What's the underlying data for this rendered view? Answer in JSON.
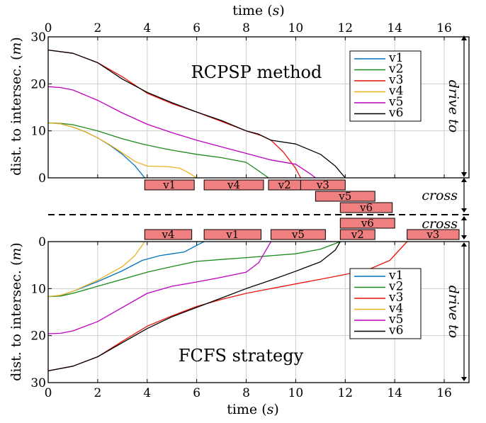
{
  "chart_data": [
    {
      "type": "line",
      "title": "RCPSP method",
      "xlabel": "time (s)",
      "ylabel": "dist. to intersec. (m)",
      "xlim": [
        0,
        17
      ],
      "ylim": [
        0,
        30
      ],
      "xticks": [
        0,
        2,
        4,
        6,
        8,
        10,
        12,
        14,
        16
      ],
      "yticks": [
        0,
        10,
        20,
        30
      ],
      "grid": true,
      "legend_position": "top-right",
      "side_labels": [
        "drive to",
        "cross"
      ],
      "series": [
        {
          "name": "v1",
          "color": "#0072BD",
          "points": [
            [
              0,
              11.7
            ],
            [
              0.5,
              11.5
            ],
            [
              1,
              10.8
            ],
            [
              1.5,
              9.8
            ],
            [
              2,
              8.5
            ],
            [
              2.5,
              6.9
            ],
            [
              3,
              5
            ],
            [
              3.5,
              2.6
            ],
            [
              3.9,
              0
            ]
          ]
        },
        {
          "name": "v2",
          "color": "#1a8a1a",
          "points": [
            [
              0,
              11.7
            ],
            [
              0.5,
              11.6
            ],
            [
              1,
              11.3
            ],
            [
              2,
              10
            ],
            [
              3,
              8.3
            ],
            [
              3.8,
              7.2
            ],
            [
              4.5,
              6.4
            ],
            [
              5,
              5.9
            ],
            [
              6,
              5
            ],
            [
              7,
              4.3
            ],
            [
              8,
              3.3
            ],
            [
              8.5,
              1.5
            ],
            [
              8.9,
              0
            ]
          ]
        },
        {
          "name": "v3",
          "color": "#e8140c",
          "points": [
            [
              0,
              27.2
            ],
            [
              1,
              26.5
            ],
            [
              2,
              24.5
            ],
            [
              3,
              21.5
            ],
            [
              4,
              18
            ],
            [
              5,
              15.8
            ],
            [
              6,
              14
            ],
            [
              7,
              12
            ],
            [
              8,
              10
            ],
            [
              8.6,
              9
            ],
            [
              9,
              8
            ],
            [
              9.5,
              5.5
            ],
            [
              10,
              2
            ],
            [
              10.2,
              0
            ]
          ]
        },
        {
          "name": "v4",
          "color": "#edb120",
          "points": [
            [
              0,
              11.7
            ],
            [
              0.5,
              11.5
            ],
            [
              1,
              10.8
            ],
            [
              1.5,
              9.8
            ],
            [
              2,
              8.5
            ],
            [
              2.5,
              7
            ],
            [
              3,
              5.3
            ],
            [
              3.5,
              3.5
            ],
            [
              4,
              2.5
            ],
            [
              4.8,
              2.4
            ],
            [
              5.3,
              2.1
            ],
            [
              5.7,
              1
            ],
            [
              6,
              0
            ]
          ]
        },
        {
          "name": "v5",
          "color": "#c000c0",
          "points": [
            [
              0,
              19.4
            ],
            [
              0.5,
              19.2
            ],
            [
              1,
              18.7
            ],
            [
              2,
              16.5
            ],
            [
              3,
              13.8
            ],
            [
              4,
              11.4
            ],
            [
              5,
              9.6
            ],
            [
              6,
              8
            ],
            [
              7,
              6.6
            ],
            [
              8,
              5.2
            ],
            [
              9,
              3.8
            ],
            [
              10,
              2.9
            ],
            [
              10.6,
              0.8
            ],
            [
              10.8,
              0
            ]
          ]
        },
        {
          "name": "v6",
          "color": "#000000",
          "points": [
            [
              0,
              27.2
            ],
            [
              1,
              26.5
            ],
            [
              2,
              24.5
            ],
            [
              3,
              21
            ],
            [
              4,
              18.2
            ],
            [
              5,
              16
            ],
            [
              6,
              14
            ],
            [
              7,
              12.2
            ],
            [
              8,
              10
            ],
            [
              8.5,
              9.3
            ],
            [
              9,
              8
            ],
            [
              10,
              7.2
            ],
            [
              11,
              5
            ],
            [
              11.6,
              2.5
            ],
            [
              12,
              0
            ]
          ]
        }
      ],
      "tasks": [
        {
          "label": "v1",
          "start": 3.9,
          "end": 5.9,
          "row": 0
        },
        {
          "label": "v4",
          "start": 6.3,
          "end": 8.7,
          "row": 0
        },
        {
          "label": "v2",
          "start": 8.9,
          "end": 10.2,
          "row": 0
        },
        {
          "label": "v3",
          "start": 10.2,
          "end": 12.0,
          "row": 0
        },
        {
          "label": "v5",
          "start": 10.8,
          "end": 13.2,
          "row": 1
        },
        {
          "label": "v6",
          "start": 11.8,
          "end": 13.9,
          "row": 2
        }
      ]
    },
    {
      "type": "line",
      "title": "FCFS strategy",
      "xlabel": "time (s)",
      "ylabel": "dist. to intersec. (m)",
      "xlim": [
        0,
        17
      ],
      "ylim": [
        0,
        30
      ],
      "y_reversed": true,
      "xticks": [
        0,
        2,
        4,
        6,
        8,
        10,
        12,
        14,
        16
      ],
      "yticks": [
        0,
        10,
        20,
        30
      ],
      "grid": true,
      "legend_position": "right",
      "side_labels": [
        "drive to",
        "cross"
      ],
      "series": [
        {
          "name": "v1",
          "color": "#0072BD",
          "points": [
            [
              0,
              11.7
            ],
            [
              0.5,
              11.5
            ],
            [
              1,
              10.6
            ],
            [
              2,
              8.5
            ],
            [
              3,
              6.2
            ],
            [
              3.8,
              4
            ],
            [
              4.5,
              3
            ],
            [
              5,
              2.6
            ],
            [
              5.5,
              2.2
            ],
            [
              6,
              0.8
            ],
            [
              6.3,
              0
            ]
          ]
        },
        {
          "name": "v2",
          "color": "#1a8a1a",
          "points": [
            [
              0,
              11.7
            ],
            [
              0.5,
              11.6
            ],
            [
              1,
              11
            ],
            [
              2,
              9.5
            ],
            [
              3,
              8
            ],
            [
              4,
              6.5
            ],
            [
              5,
              5.3
            ],
            [
              6,
              4.2
            ],
            [
              7,
              3.8
            ],
            [
              8,
              3.4
            ],
            [
              9,
              3
            ],
            [
              10,
              2.6
            ],
            [
              11,
              1.6
            ],
            [
              11.8,
              0
            ]
          ]
        },
        {
          "name": "v3",
          "color": "#e8140c",
          "points": [
            [
              0,
              27.5
            ],
            [
              1,
              26.5
            ],
            [
              2,
              24.5
            ],
            [
              3,
              21.2
            ],
            [
              4,
              18
            ],
            [
              5,
              15.8
            ],
            [
              6,
              13.8
            ],
            [
              7,
              12.3
            ],
            [
              8,
              11
            ],
            [
              9,
              10
            ],
            [
              10,
              9
            ],
            [
              11,
              8
            ],
            [
              12,
              7
            ],
            [
              13,
              5.8
            ],
            [
              13.8,
              4
            ],
            [
              14.5,
              0
            ]
          ]
        },
        {
          "name": "v4",
          "color": "#edb120",
          "points": [
            [
              0,
              11.7
            ],
            [
              0.5,
              11.4
            ],
            [
              1,
              10.6
            ],
            [
              2,
              8.2
            ],
            [
              3,
              5.3
            ],
            [
              3.5,
              3
            ],
            [
              3.9,
              0
            ]
          ]
        },
        {
          "name": "v5",
          "color": "#c000c0",
          "points": [
            [
              0,
              19.6
            ],
            [
              0.5,
              19.5
            ],
            [
              1,
              19
            ],
            [
              2,
              17
            ],
            [
              3,
              14
            ],
            [
              4,
              11
            ],
            [
              5,
              9.5
            ],
            [
              6,
              8.6
            ],
            [
              7,
              7.6
            ],
            [
              8,
              6.5
            ],
            [
              8.5,
              4.5
            ],
            [
              9,
              0
            ]
          ]
        },
        {
          "name": "v6",
          "color": "#000000",
          "points": [
            [
              0,
              27.5
            ],
            [
              1,
              26.5
            ],
            [
              2,
              24.5
            ],
            [
              3,
              21.5
            ],
            [
              4,
              18.5
            ],
            [
              5,
              16
            ],
            [
              6,
              14
            ],
            [
              7,
              12
            ],
            [
              8,
              10
            ],
            [
              9,
              8.2
            ],
            [
              10,
              6.3
            ],
            [
              11,
              4.3
            ],
            [
              11.6,
              1.8
            ],
            [
              11.8,
              0
            ]
          ]
        }
      ],
      "tasks": [
        {
          "label": "v4",
          "start": 3.9,
          "end": 5.8,
          "row": 0
        },
        {
          "label": "v1",
          "start": 6.3,
          "end": 8.6,
          "row": 0
        },
        {
          "label": "v5",
          "start": 9.0,
          "end": 11.2,
          "row": 0
        },
        {
          "label": "v2",
          "start": 11.8,
          "end": 13.2,
          "row": 0
        },
        {
          "label": "v6",
          "start": 11.8,
          "end": 14.0,
          "row": 1
        },
        {
          "label": "v3",
          "start": 14.5,
          "end": 16.6,
          "row": 0
        }
      ]
    }
  ]
}
